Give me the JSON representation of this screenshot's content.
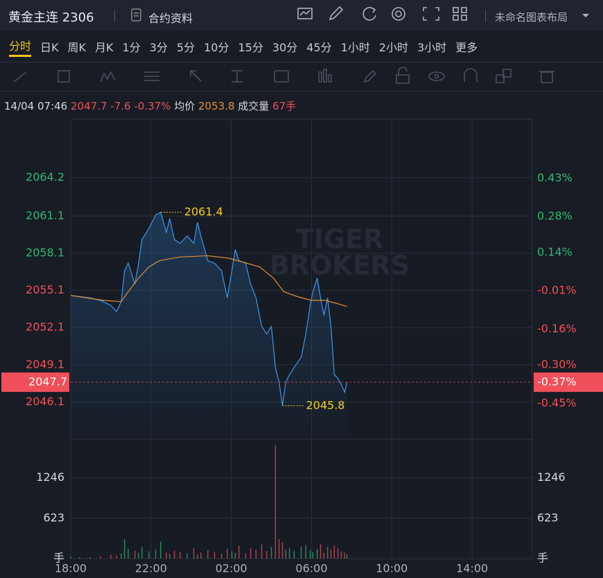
{
  "header": {
    "symbol": "黄金主连 2306",
    "contract_info": "合约资料",
    "layout_name": "未命名图表布局"
  },
  "tabs": [
    "分时",
    "日K",
    "周K",
    "月K",
    "1分",
    "3分",
    "5分",
    "10分",
    "15分",
    "30分",
    "45分",
    "1小时",
    "2小时",
    "3小时",
    "更多"
  ],
  "info": {
    "time": "14/04 07:46",
    "price": 2047.7,
    "change": -7.6,
    "change_pct": {
      "value": -0.37,
      "label": "-0.37%"
    },
    "avg_label": "均价",
    "avg": 2053.8,
    "volume_label": "成交量",
    "volume": "67手"
  },
  "watermark": [
    "TIGER",
    "BROKERS"
  ],
  "chart_data": {
    "type": "line",
    "x": [
      "18:00",
      "18:27",
      "18:58",
      "19:29",
      "20:00",
      "20:17",
      "20:31",
      "20:41",
      "20:52",
      "21:12",
      "21:23",
      "21:33",
      "21:54",
      "22:14",
      "22:29",
      "22:46",
      "22:56",
      "23:10",
      "23:27",
      "23:48",
      "00:08",
      "00:19",
      "00:29",
      "00:50",
      "01:10",
      "01:31",
      "01:48",
      "02:02",
      "02:12",
      "02:23",
      "02:43",
      "02:58",
      "03:14",
      "03:31",
      "03:46",
      "04:00",
      "04:12",
      "04:23",
      "04:33",
      "04:43",
      "04:54",
      "05:08",
      "05:29",
      "05:43",
      "05:56",
      "06:04",
      "06:17",
      "06:27",
      "06:37",
      "06:48",
      "06:58",
      "07:08",
      "07:19",
      "07:29",
      "07:39",
      "07:46"
    ],
    "series": [
      {
        "color": "#3d8fe0",
        "values": [
          2054.7,
          2054.6,
          2054.5,
          2054.3,
          2053.9,
          2053.4,
          2054.2,
          2056.7,
          2057.3,
          2055.6,
          2057.3,
          2059.2,
          2060.1,
          2061.2,
          2061.4,
          2059.8,
          2060.9,
          2059.2,
          2058.9,
          2059.5,
          2058.9,
          2060.6,
          2059.5,
          2057.5,
          2057.3,
          2056.7,
          2054.5,
          2056.7,
          2058.4,
          2057.5,
          2057.3,
          2055.6,
          2054.5,
          2052.2,
          2051.6,
          2052.2,
          2048.9,
          2047.7,
          2045.8,
          2047.7,
          2048.3,
          2048.9,
          2049.7,
          2051.6,
          2053.9,
          2055.0,
          2056.1,
          2054.5,
          2053.1,
          2054.5,
          2052.2,
          2048.3,
          2048.0,
          2047.5,
          2046.9,
          2047.7
        ]
      }
    ],
    "average": {
      "color": "#e0913a",
      "x": [
        "18:00",
        "19:39",
        "20:31",
        "20:52",
        "21:23",
        "21:54",
        "22:25",
        "23:27",
        "00:50",
        "01:52",
        "02:33",
        "03:25",
        "04:06",
        "04:37",
        "05:18",
        "05:59",
        "06:41",
        "07:22",
        "07:46"
      ],
      "values": [
        2054.7,
        2054.3,
        2054.2,
        2055.0,
        2056.1,
        2057.0,
        2057.5,
        2057.8,
        2057.9,
        2057.7,
        2057.4,
        2057.0,
        2056.1,
        2055.0,
        2054.6,
        2054.3,
        2054.3,
        2054.0,
        2053.8
      ]
    },
    "volume": {
      "values": [
        30,
        25,
        20,
        35,
        60,
        45,
        80,
        300,
        150,
        120,
        90,
        180,
        110,
        140,
        260,
        90,
        70,
        120,
        100,
        80,
        160,
        60,
        90,
        130,
        100,
        70,
        150,
        110,
        90,
        200,
        80,
        160,
        140,
        220,
        120,
        180,
        1750,
        300,
        250,
        140,
        160,
        120,
        180,
        210,
        130,
        100,
        150,
        220,
        90,
        180,
        140,
        200,
        160,
        110,
        90,
        60
      ],
      "ylim": [
        0,
        1842
      ],
      "yticks": [
        1246,
        623,
        {
          "value": 0,
          "label": "手"
        }
      ]
    },
    "up_color": "#2eb872",
    "down_color": "#f0505a",
    "xlim": [
      "18:00",
      "17:00"
    ],
    "xticks": [
      "18:00",
      "22:00",
      "02:00",
      "06:00",
      "10:00",
      "14:00"
    ],
    "ylim": [
      2043.1,
      2068.9
    ],
    "yticks": [
      2064.2,
      2061.1,
      2058.1,
      2055.1,
      2052.1,
      2049.1,
      2046.1
    ],
    "y2lim": [
      -0.59,
      0.66
    ],
    "y2ticks": [
      {
        "value": 0.43,
        "label": "0.43%"
      },
      {
        "value": 0.28,
        "label": "0.28%"
      },
      {
        "value": 0.14,
        "label": "0.14%"
      },
      {
        "value": -0.01,
        "label": "-0.01%"
      },
      {
        "value": -0.16,
        "label": "-0.16%"
      },
      {
        "value": -0.3,
        "label": "-0.30%"
      },
      {
        "value": -0.45,
        "label": "-0.45%"
      }
    ],
    "annotations": [
      {
        "x": "22:29",
        "value": 2061.4
      },
      {
        "x": "04:33",
        "value": 2045.8
      }
    ],
    "grid": true
  }
}
